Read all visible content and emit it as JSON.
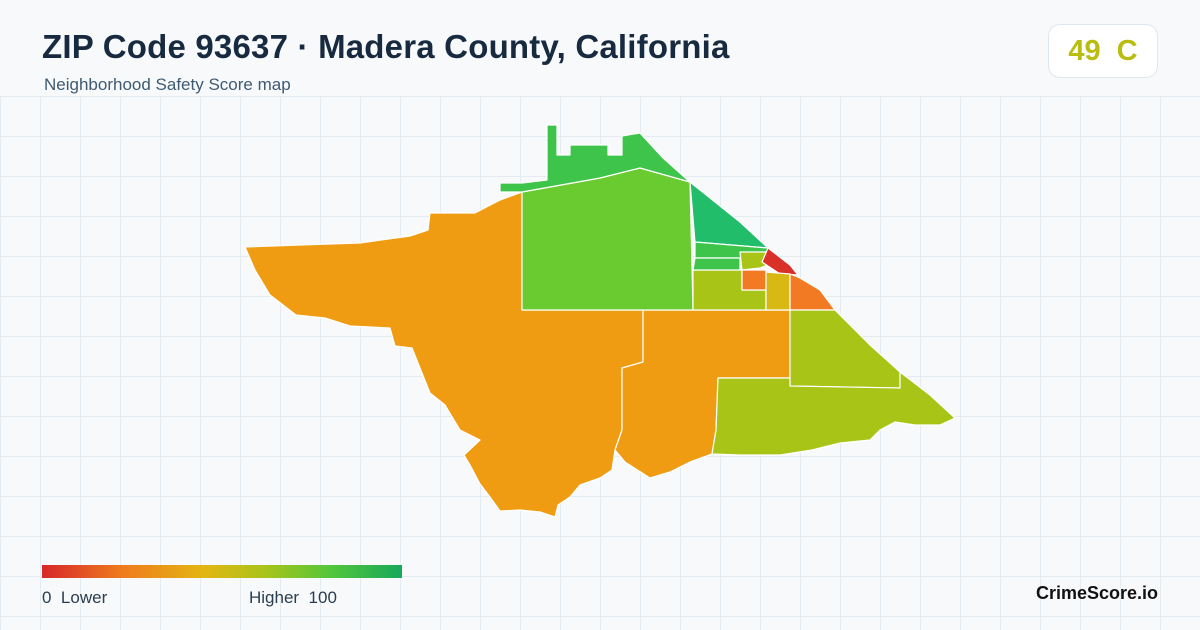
{
  "header": {
    "title": "ZIP Code 93637 · Madera County, California",
    "subtitle": "Neighborhood Safety Score map"
  },
  "score": {
    "value": "49",
    "grade": "C",
    "color": "#b9bd10"
  },
  "legend": {
    "min_value": "0",
    "min_label": "Lower",
    "max_label": "Higher",
    "max_value": "100",
    "colors": [
      "#d7262a",
      "#ef7a1d",
      "#e3b612",
      "#a8c41a",
      "#54c63a",
      "#17a85a"
    ]
  },
  "brand": "CrimeScore.io",
  "map_colors": {
    "orange": "#f09c12",
    "lime": "#a8c416",
    "green": "#6acb30",
    "bright_green": "#3ec44b",
    "teal_green": "#21bd6b",
    "red": "#d93127",
    "dark_orange": "#f27a22",
    "yellow": "#d8b812"
  }
}
